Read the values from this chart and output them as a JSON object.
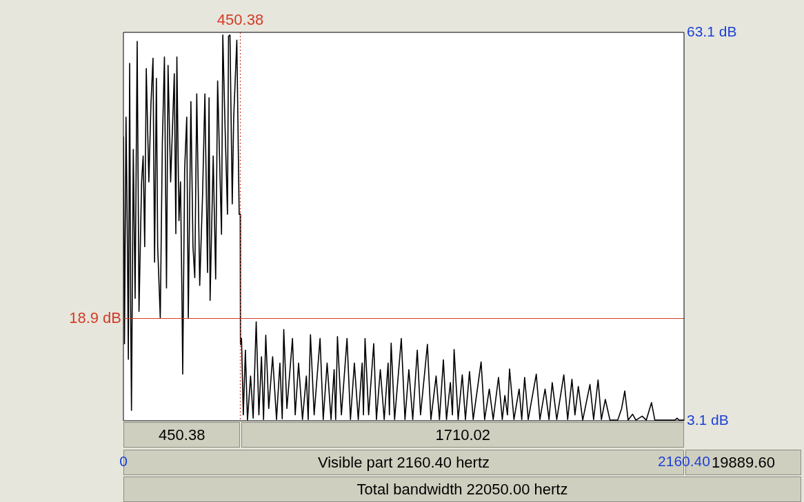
{
  "chart_data": {
    "type": "line",
    "marker": "none",
    "line_style": "solid",
    "xlim": [
      0,
      2160.4
    ],
    "xticks": [
      0,
      {
        "value": 2160.4,
        "label": "2160.40"
      }
    ],
    "ylim": [
      3.1,
      63.1
    ],
    "yticks": [
      {
        "value": 3.1,
        "label": "3.1 dB"
      },
      {
        "value": 63.1,
        "label": "63.1 dB"
      }
    ],
    "ref_lines": [
      {
        "axis": "x",
        "value": 450.38,
        "label": "450.38",
        "color": "#d23c28",
        "line_style": "dotted"
      },
      {
        "axis": "y",
        "value": 18.9,
        "label": "18.9 dB",
        "color": "#d23c28",
        "line_style": "solid"
      }
    ],
    "annotations": [
      "450.38",
      "1710.02",
      "Visible part 2160.40 hertz",
      "19889.60",
      "Total bandwidth 22050.00 hertz"
    ],
    "series": [
      {
        "color": "#000000",
        "x": [
          0,
          4,
          10,
          15,
          19,
          24,
          28,
          31,
          38,
          45,
          53,
          60,
          70,
          76,
          82,
          88,
          98,
          106,
          114,
          120,
          127,
          132,
          142,
          150,
          158,
          166,
          172,
          182,
          196,
          202,
          206,
          214,
          220,
          225.6,
          228.5,
          236,
          244,
          250,
          260,
          268,
          275,
          282.6,
          294,
          305,
          314,
          324,
          330,
          334,
          346,
          355.5,
          363,
          378,
          383,
          392,
          401,
          405,
          410.6,
          419.4,
          425,
          437,
          446,
          450,
          451,
          455,
          462,
          470,
          478,
          490,
          500,
          511.7,
          522,
          532,
          540,
          548.6,
          560,
          575,
          590,
          603,
          612,
          617.9,
          630,
          651.5,
          662,
          675,
          690,
          705,
          712,
          720.8,
          735,
          757.7,
          770,
          785,
          800,
          812,
          818,
          824.8,
          840,
          861.7,
          875,
          890,
          905,
          920,
          925,
          931.1,
          945,
          964.6,
          975,
          990,
          1005,
          1020,
          1025,
          1031.7,
          1045,
          1070.9,
          1085,
          1100,
          1115,
          1132.4,
          1145,
          1171.5,
          1185,
          1205,
          1218,
          1233,
          1245,
          1260,
          1268,
          1274.4,
          1290,
          1305.8,
          1318,
          1333.7,
          1348,
          1378.4,
          1392,
          1410,
          1425,
          1445.5,
          1460,
          1470,
          1480,
          1488,
          1505,
          1525,
          1535,
          1546.2,
          1560,
          1591,
          1605,
          1625,
          1640,
          1652.5,
          1670,
          1697.2,
          1712,
          1728.5,
          1740,
          1753.1,
          1770,
          1797.9,
          1812,
          1829.2,
          1842,
          1857.1,
          1875,
          1905,
          1920,
          1932.1,
          1945,
          1962.3,
          1975,
          1999.2,
          2015,
          2035,
          2048,
          2125,
          2133.4,
          2142,
          2160.4
        ],
        "values": [
          47,
          15,
          50,
          32,
          12.6,
          58.3,
          20,
          4.7,
          45,
          22,
          61.7,
          20,
          40,
          44,
          30,
          57.5,
          40,
          52,
          59.1,
          27.6,
          56,
          30,
          19,
          46,
          59.3,
          23.6,
          58,
          40,
          56.7,
          32,
          59.3,
          34,
          40,
          22,
          10.3,
          42,
          50,
          19,
          52.4,
          30,
          25.2,
          53.6,
          24,
          38,
          53.6,
          26,
          53,
          21.7,
          44,
          25,
          55.6,
          31.9,
          62.7,
          48,
          35,
          62.5,
          62.7,
          36.6,
          50,
          61.9,
          35,
          35,
          14.9,
          15.8,
          4,
          14,
          3.2,
          10,
          3.5,
          18.4,
          4,
          13,
          3.3,
          16.3,
          5,
          13,
          3.3,
          12,
          3.4,
          17.2,
          5,
          15.8,
          4,
          12,
          3.3,
          10,
          3.3,
          16.4,
          4,
          15.8,
          3.3,
          12,
          3.3,
          11,
          3.3,
          16.1,
          4,
          15.8,
          3.3,
          12,
          3.3,
          12,
          4,
          15.8,
          4,
          15,
          3.3,
          11,
          3.3,
          12,
          4,
          15.1,
          3.3,
          15.8,
          3.3,
          11,
          3.3,
          14,
          4,
          14.9,
          3.3,
          10,
          3.3,
          12.5,
          3.3,
          9,
          4,
          14.1,
          3.3,
          10.2,
          3.3,
          10.7,
          3.3,
          12.2,
          3.3,
          8,
          3.3,
          9.8,
          3.3,
          7,
          4,
          11.1,
          3.3,
          8,
          3.3,
          9.8,
          3.3,
          10.3,
          3.3,
          8,
          3.3,
          9,
          3.3,
          10.2,
          3.3,
          9.5,
          4,
          8.4,
          3.2,
          8.7,
          3.3,
          9.4,
          3.3,
          6.4,
          3.2,
          3.2,
          5,
          7.7,
          3.2,
          4.1,
          3.2,
          3.8,
          3.2,
          5.9,
          3.2,
          3.2,
          3.5,
          3.2,
          3.2
        ]
      }
    ]
  }
}
